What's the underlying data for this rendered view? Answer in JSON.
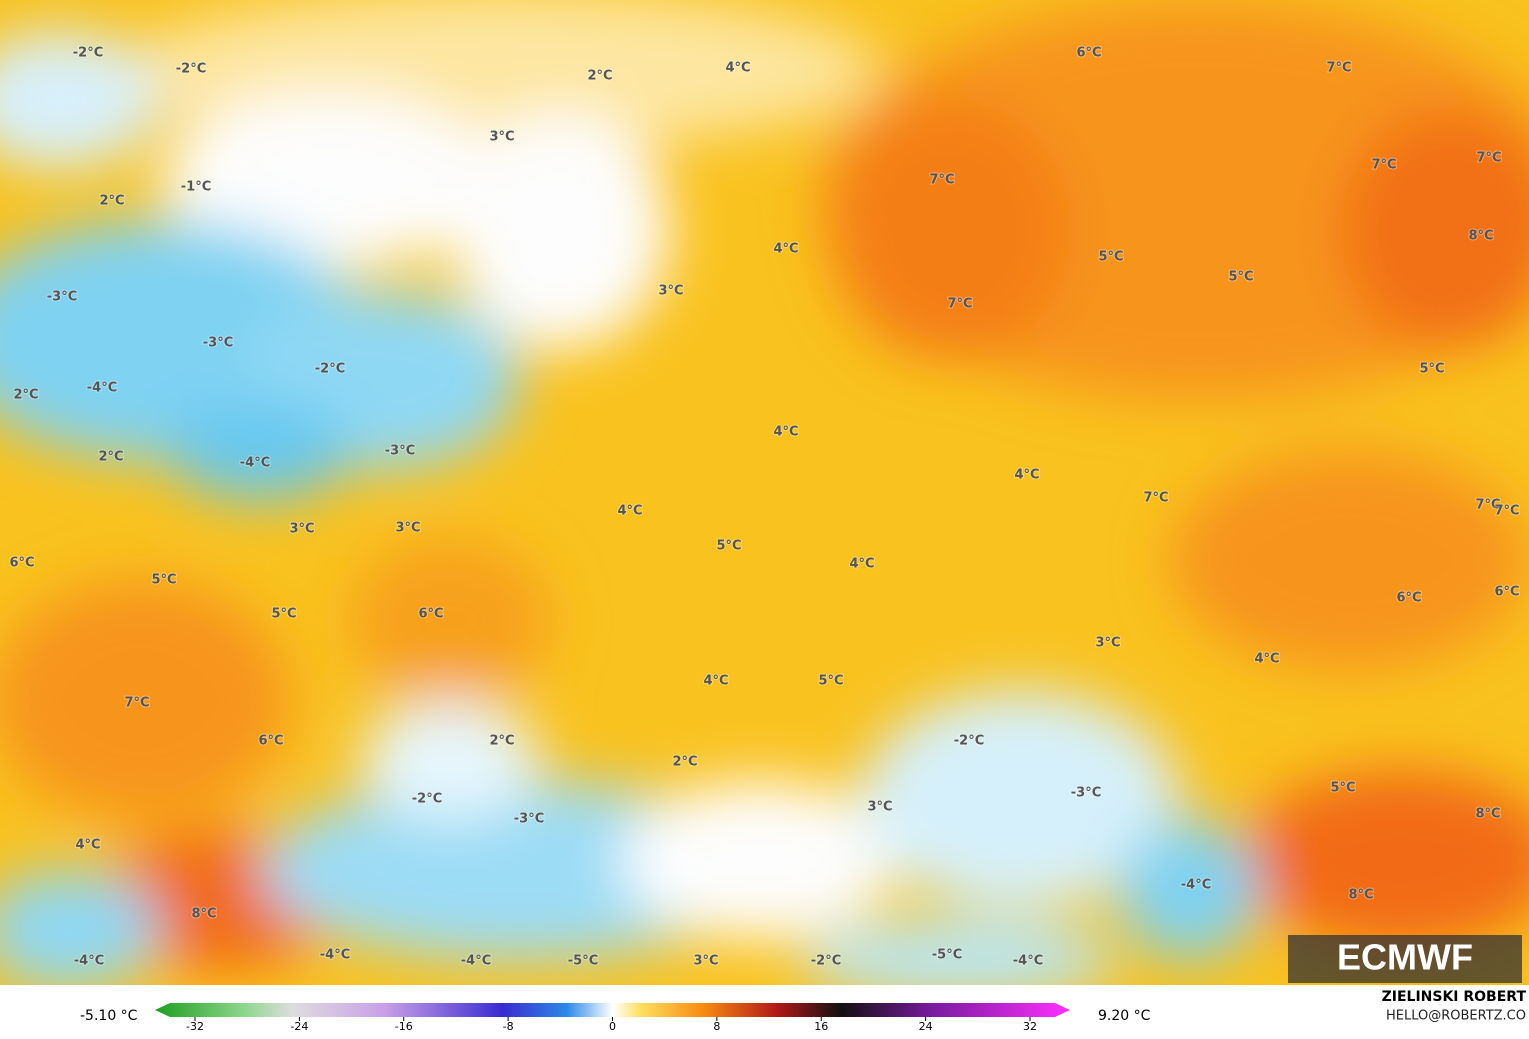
{
  "map": {
    "labels": [
      "-2°C",
      "-2°C",
      "2°C",
      "4°C",
      "6°C",
      "7°C",
      "3°C",
      "-1°C",
      "2°C",
      "7°C",
      "7°C",
      "7°C",
      "4°C",
      "5°C",
      "8°C",
      "5°C",
      "-3°C",
      "3°C",
      "7°C",
      "-3°C",
      "-2°C",
      "5°C",
      "2°C",
      "-4°C",
      "4°C",
      "-3°C",
      "2°C",
      "-4°C",
      "4°C",
      "7°C",
      "7°C",
      "7°C",
      "3°C",
      "3°C",
      "4°C",
      "5°C",
      "6°C",
      "4°C",
      "5°C",
      "5°C",
      "6°C",
      "6°C",
      "6°C",
      "3°C",
      "4°C",
      "4°C",
      "5°C",
      "7°C",
      "6°C",
      "2°C",
      "-2°C",
      "2°C",
      "-2°C",
      "-3°C",
      "5°C",
      "3°C",
      "-3°C",
      "8°C",
      "4°C",
      "-4°C",
      "8°C",
      "8°C",
      "-4°C",
      "-4°C",
      "-4°C",
      "-5°C",
      "3°C",
      "-2°C",
      "-5°C",
      "-4°C"
    ]
  },
  "colorbar": {
    "min_label": "-5.10 °C",
    "max_label": "9.20 °C",
    "ticks": [
      -32,
      -24,
      -16,
      -8,
      0,
      8,
      16,
      24,
      32
    ]
  },
  "logo": "ECMWF",
  "credit": {
    "name": "ZIELINSKI ROBERT",
    "email": "HELLO@ROBERTZ.CO"
  }
}
